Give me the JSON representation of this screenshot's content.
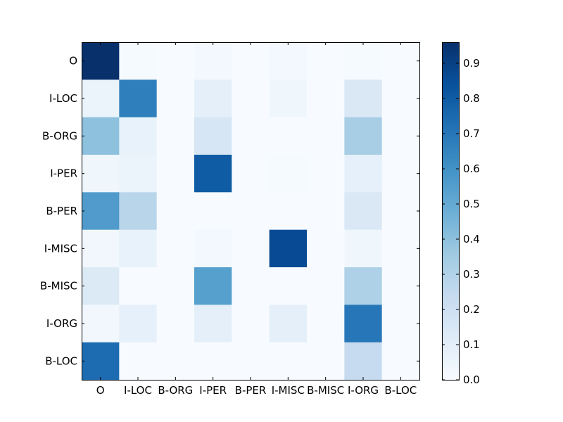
{
  "chart_data": {
    "type": "heatmap",
    "title": "",
    "xlabel": "",
    "ylabel": "",
    "x_labels": [
      "O",
      "I-LOC",
      "B-ORG",
      "I-PER",
      "B-PER",
      "I-MISC",
      "B-MISC",
      "I-ORG",
      "B-LOC"
    ],
    "y_labels": [
      "O",
      "I-LOC",
      "B-ORG",
      "I-PER",
      "B-PER",
      "I-MISC",
      "B-MISC",
      "I-ORG",
      "B-LOC"
    ],
    "colormap": "Blues",
    "colormap_stops": [
      "#f7fbff",
      "#deebf7",
      "#c6dbef",
      "#9ecae1",
      "#6baed6",
      "#4292c6",
      "#2171b5",
      "#08519c",
      "#08306b"
    ],
    "vmin": 0.0,
    "vmax": 0.96,
    "values": [
      [
        0.96,
        0.01,
        0.0,
        0.02,
        0.0,
        0.02,
        0.0,
        0.01,
        0.0
      ],
      [
        0.06,
        0.67,
        0.0,
        0.09,
        0.0,
        0.04,
        0.0,
        0.14,
        0.0
      ],
      [
        0.4,
        0.07,
        0.0,
        0.16,
        0.0,
        0.0,
        0.0,
        0.33,
        0.0
      ],
      [
        0.04,
        0.06,
        0.0,
        0.8,
        0.0,
        0.01,
        0.0,
        0.08,
        0.0
      ],
      [
        0.56,
        0.28,
        0.0,
        0.0,
        0.0,
        0.0,
        0.0,
        0.14,
        0.0
      ],
      [
        0.03,
        0.07,
        0.0,
        0.02,
        0.0,
        0.86,
        0.0,
        0.04,
        0.0
      ],
      [
        0.13,
        0.0,
        0.0,
        0.54,
        0.0,
        0.0,
        0.0,
        0.31,
        0.0
      ],
      [
        0.03,
        0.08,
        0.0,
        0.09,
        0.0,
        0.09,
        0.0,
        0.7,
        0.0
      ],
      [
        0.74,
        0.0,
        0.0,
        0.0,
        0.0,
        0.0,
        0.0,
        0.24,
        0.0
      ]
    ],
    "colorbar_ticks": [
      "0.0",
      "0.1",
      "0.2",
      "0.3",
      "0.4",
      "0.5",
      "0.6",
      "0.7",
      "0.8",
      "0.9"
    ],
    "grid": false,
    "legend": "colorbar-right"
  }
}
